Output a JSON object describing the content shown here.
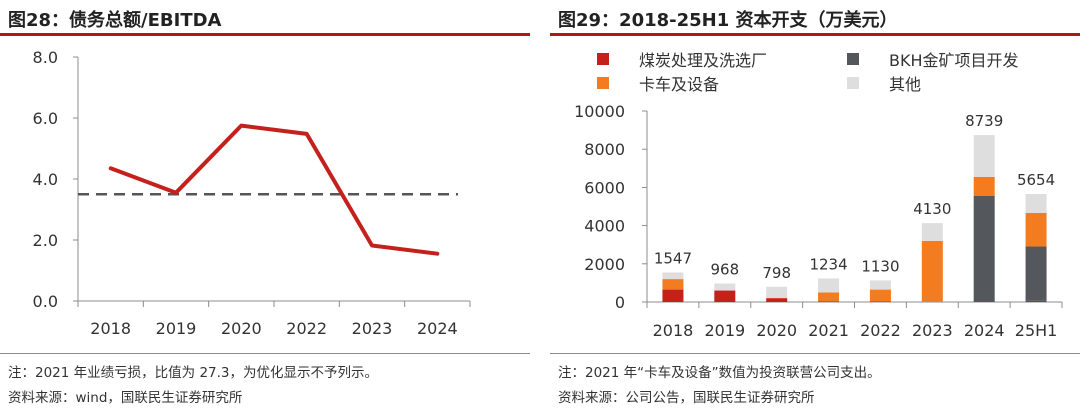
{
  "colors": {
    "accent_red": "#c4201c",
    "dashed": "#555555",
    "coal": "#c4201c",
    "trucks": "#f47c20",
    "bkh": "#54575c",
    "other": "#dedede",
    "axis": "#8c8c8c"
  },
  "left": {
    "title": "图28：债务总额/EBITDA",
    "note": "注：2021 年业绩亏损，比值为 27.3，为优化显示不予列示。",
    "source": "资料来源：wind，国联民生证券研究所"
  },
  "right": {
    "title": "图29：2018-25H1 资本开支（万美元）",
    "note": "注：2021 年“卡车及设备”数值为投资联营公司支出。",
    "source": "资料来源：公司公告，国联民生证券研究所"
  },
  "chart_data": [
    {
      "type": "line",
      "title": "债务总额/EBITDA",
      "categories": [
        "2018",
        "2019",
        "2020",
        "2022",
        "2023",
        "2024"
      ],
      "series": [
        {
          "name": "债务总额/EBITDA",
          "values": [
            4.35,
            3.55,
            5.75,
            5.48,
            1.82,
            1.55
          ]
        }
      ],
      "reference_line": {
        "value": 3.5,
        "style": "dashed"
      },
      "ylim": [
        0,
        8
      ],
      "yticks": [
        "0.0",
        "2.0",
        "4.0",
        "6.0",
        "8.0"
      ]
    },
    {
      "type": "bar",
      "stacked": true,
      "title": "2018-25H1 资本开支（万美元）",
      "categories": [
        "2018",
        "2019",
        "2020",
        "2021",
        "2022",
        "2023",
        "2024",
        "25H1"
      ],
      "series": [
        {
          "name": "煤炭处理及洗选厂",
          "color_key": "coal",
          "values": [
            650,
            600,
            200,
            40,
            30,
            0,
            0,
            60
          ]
        },
        {
          "name": "卡车及设备",
          "color_key": "trucks",
          "values": [
            550,
            0,
            20,
            460,
            620,
            3200,
            1000,
            1750
          ]
        },
        {
          "name": "BKH金矿项目开发",
          "color_key": "bkh",
          "values": [
            0,
            0,
            0,
            0,
            0,
            0,
            5550,
            2850
          ]
        },
        {
          "name": "其他",
          "color_key": "other",
          "values": [
            347,
            368,
            578,
            734,
            480,
            930,
            2189,
            994
          ]
        }
      ],
      "totals": [
        1547,
        968,
        798,
        1234,
        1130,
        4130,
        8739,
        5654
      ],
      "ylim": [
        0,
        10000
      ],
      "yticks": [
        "0",
        "2000",
        "4000",
        "6000",
        "8000",
        "10000"
      ],
      "legend": [
        {
          "label": "煤炭处理及洗选厂",
          "color_key": "coal"
        },
        {
          "label": "BKH金矿项目开发",
          "color_key": "bkh"
        },
        {
          "label": "卡车及设备",
          "color_key": "trucks"
        },
        {
          "label": "其他",
          "color_key": "other"
        }
      ]
    }
  ]
}
